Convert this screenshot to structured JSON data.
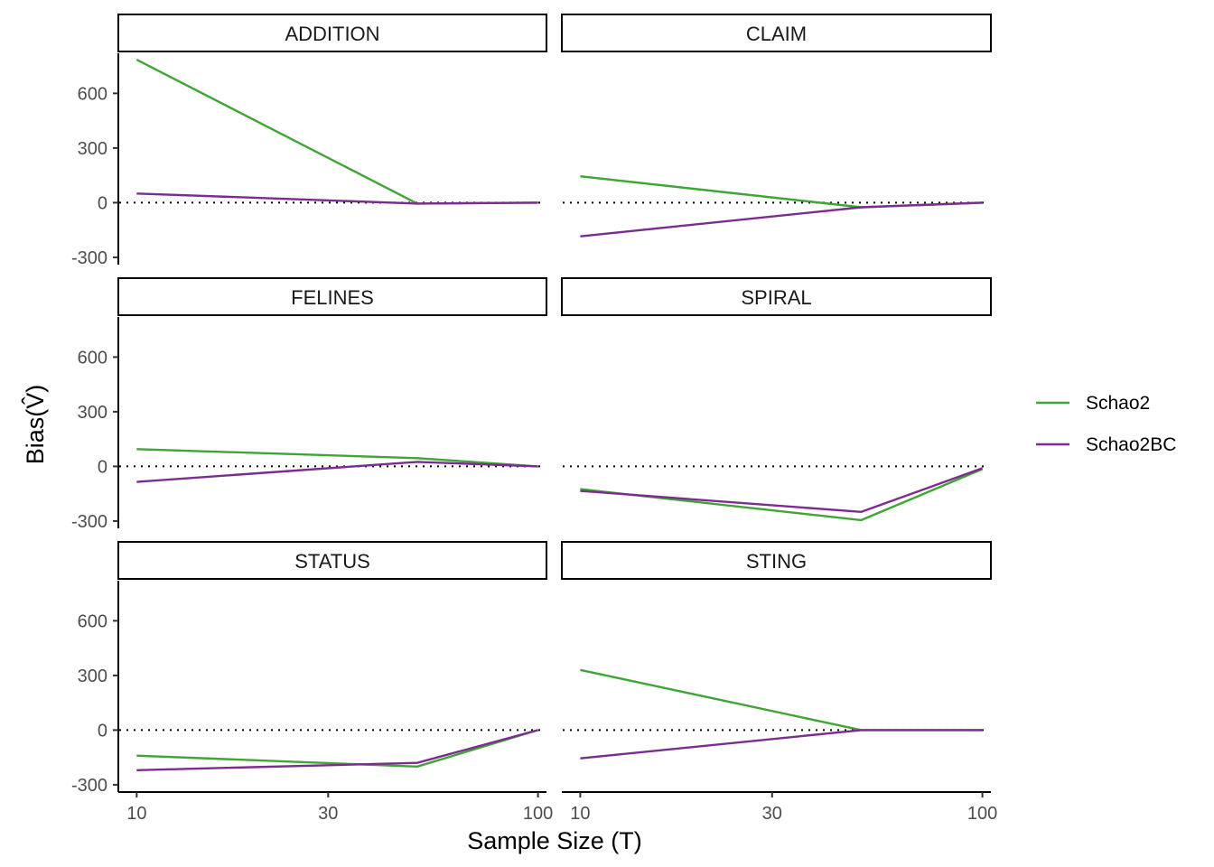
{
  "chart_data": {
    "type": "line",
    "xlabel": "Sample Size (T)",
    "ylabel": "Bias(V̂)",
    "x_scale": "log10",
    "x_ticks": [
      10,
      30,
      100
    ],
    "x_tick_labels": [
      "10",
      "30",
      "100"
    ],
    "xlim": [
      9,
      105
    ],
    "y_ticks": [
      -300,
      0,
      300,
      600
    ],
    "y_tick_labels": [
      "-300",
      "0",
      "300",
      "600"
    ],
    "ylim": [
      -340,
      820
    ],
    "reference_line": {
      "y": 0,
      "style": "dotted"
    },
    "grid": false,
    "legend_position": "right",
    "series_styles": [
      {
        "name": "Schao2",
        "color": "#3fa535"
      },
      {
        "name": "Schao2BC",
        "color": "#7b2d8f"
      }
    ],
    "panels": [
      {
        "title": "ADDITION",
        "series": [
          {
            "name": "Schao2",
            "x": [
              10,
              50,
              100
            ],
            "y": [
              785,
              -5,
              0
            ]
          },
          {
            "name": "Schao2BC",
            "x": [
              10,
              50,
              100
            ],
            "y": [
              50,
              -5,
              0
            ]
          }
        ]
      },
      {
        "title": "CLAIM",
        "series": [
          {
            "name": "Schao2",
            "x": [
              10,
              50,
              100
            ],
            "y": [
              145,
              -25,
              0
            ]
          },
          {
            "name": "Schao2BC",
            "x": [
              10,
              50,
              100
            ],
            "y": [
              -185,
              -25,
              0
            ]
          }
        ]
      },
      {
        "title": "FELINES",
        "series": [
          {
            "name": "Schao2",
            "x": [
              10,
              50,
              100
            ],
            "y": [
              95,
              45,
              0
            ]
          },
          {
            "name": "Schao2BC",
            "x": [
              10,
              50,
              100
            ],
            "y": [
              -85,
              25,
              0
            ]
          }
        ]
      },
      {
        "title": "SPIRAL",
        "series": [
          {
            "name": "Schao2",
            "x": [
              10,
              50,
              100
            ],
            "y": [
              -125,
              -295,
              -15
            ]
          },
          {
            "name": "Schao2BC",
            "x": [
              10,
              50,
              100
            ],
            "y": [
              -135,
              -250,
              -10
            ]
          }
        ]
      },
      {
        "title": "STATUS",
        "series": [
          {
            "name": "Schao2",
            "x": [
              10,
              50,
              100
            ],
            "y": [
              -140,
              -200,
              0
            ]
          },
          {
            "name": "Schao2BC",
            "x": [
              10,
              50,
              100
            ],
            "y": [
              -220,
              -180,
              0
            ]
          }
        ]
      },
      {
        "title": "STING",
        "series": [
          {
            "name": "Schao2",
            "x": [
              10,
              50,
              100
            ],
            "y": [
              330,
              0,
              0
            ]
          },
          {
            "name": "Schao2BC",
            "x": [
              10,
              50,
              100
            ],
            "y": [
              -155,
              0,
              0
            ]
          }
        ]
      }
    ]
  }
}
